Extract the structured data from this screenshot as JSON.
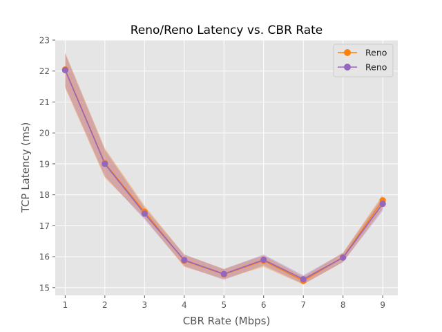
{
  "chart_data": {
    "type": "line",
    "title": "Reno/Reno Latency vs. CBR Rate",
    "xlabel": "CBR Rate (Mbps)",
    "ylabel": "TCP Latency (ms)",
    "x": [
      1,
      2,
      3,
      4,
      5,
      6,
      7,
      8,
      9
    ],
    "xlim": [
      0.75,
      9.38
    ],
    "ylim": [
      14.75,
      23.0
    ],
    "xticks": [
      1,
      2,
      3,
      4,
      5,
      6,
      7,
      8,
      9
    ],
    "yticks": [
      15,
      16,
      17,
      18,
      19,
      20,
      21,
      22,
      23
    ],
    "grid": true,
    "legend_position": "top-right",
    "series": [
      {
        "name": "Reno",
        "color": "#ff7f0e",
        "marker": "circle",
        "values": [
          22.05,
          19.02,
          17.45,
          15.87,
          15.43,
          15.87,
          15.22,
          15.98,
          17.82
        ],
        "band_lower": [
          21.45,
          18.55,
          17.25,
          15.67,
          15.28,
          15.67,
          15.1,
          15.83,
          17.55
        ],
        "band_upper": [
          22.6,
          19.5,
          17.65,
          16.07,
          15.6,
          16.04,
          15.35,
          16.13,
          18.0
        ]
      },
      {
        "name": "Reno",
        "color": "#9467bd",
        "marker": "circle",
        "values": [
          22.03,
          19.0,
          17.39,
          15.89,
          15.44,
          15.9,
          15.27,
          15.97,
          17.71
        ],
        "band_lower": [
          21.5,
          18.6,
          17.2,
          15.7,
          15.25,
          15.72,
          15.12,
          15.82,
          17.48
        ],
        "band_upper": [
          22.56,
          19.45,
          17.58,
          16.07,
          15.6,
          16.07,
          15.4,
          16.12,
          17.93
        ]
      }
    ]
  }
}
